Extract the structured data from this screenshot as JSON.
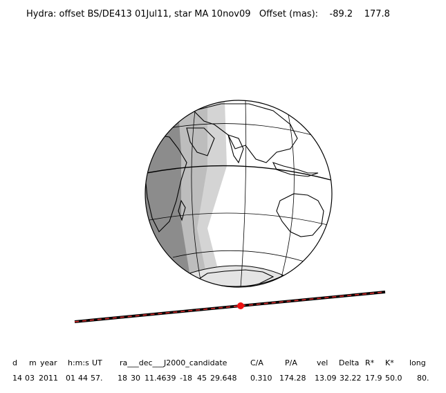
{
  "title": "Hydra: offset BS/DE413 01Jul11, star MA 10nov09   Offset (mas):    -89.2    177.8",
  "colors": {
    "night": "#8c8c8c",
    "twilight": "#bdbdbd",
    "penumbra": "#d4d4d4",
    "day": "#ffffff",
    "coast": "#000000",
    "track_dash": "#e03030",
    "marker": "#ee1111"
  },
  "table": {
    "headers": [
      "d",
      "m",
      "year",
      "h:m:s",
      "UT",
      "ra___dec___J2000_candidate",
      "C/A",
      "P/A",
      "vel",
      "Delta",
      "R*",
      "K*",
      "long"
    ],
    "values": [
      "14",
      "03",
      "2011",
      "01",
      "44",
      "57.",
      "18",
      "30",
      "11.4639",
      "-18",
      "45",
      "29.648",
      "0.310",
      "174.28",
      "13.09",
      "32.22",
      "17.9",
      "50.0",
      "80."
    ]
  }
}
